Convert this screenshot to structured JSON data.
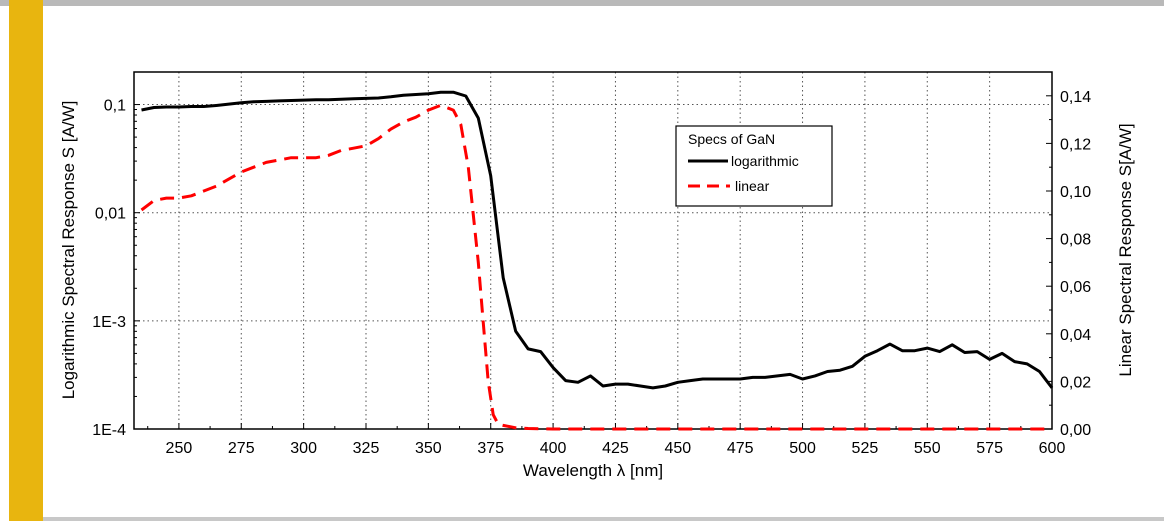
{
  "colors": {
    "accent_bar": "#e8b50f",
    "logarithmic_series": "#000000",
    "linear_series": "#ff0000",
    "grid": "#555555"
  },
  "chart_data": {
    "type": "line",
    "xlabel": "Wavelength λ [nm]",
    "ylabel_left": "Logarithmic Spectral Response S [A/W]",
    "ylabel_right": "Linear Spectral Response S[A/W]",
    "xlim": [
      232,
      600
    ],
    "ylim_left": [
      0.0001,
      0.2
    ],
    "yscale_left": "log",
    "ylim_right": [
      0,
      0.15
    ],
    "x_ticks": [
      "250",
      "275",
      "300",
      "325",
      "350",
      "375",
      "400",
      "425",
      "450",
      "475",
      "500",
      "525",
      "550",
      "575",
      "600"
    ],
    "y_ticks_left": [
      "1E-4",
      "1E-3",
      "0,01",
      "0,1"
    ],
    "y_ticks_right": [
      "0,00",
      "0,02",
      "0,04",
      "0,06",
      "0,08",
      "0,10",
      "0,12",
      "0,14"
    ],
    "grid": true,
    "legend": {
      "title": "Specs of GaN",
      "position": "top-right",
      "entries": [
        "logarithmic",
        "linear"
      ]
    },
    "series": [
      {
        "name": "logarithmic",
        "axis": "left",
        "style": "solid",
        "x": [
          235,
          240,
          245,
          250,
          255,
          260,
          265,
          270,
          275,
          280,
          285,
          290,
          295,
          300,
          305,
          310,
          315,
          320,
          325,
          330,
          335,
          340,
          345,
          350,
          355,
          360,
          365,
          370,
          375,
          380,
          385,
          390,
          395,
          400,
          405,
          410,
          415,
          420,
          425,
          430,
          435,
          440,
          445,
          450,
          455,
          460,
          465,
          470,
          475,
          480,
          485,
          490,
          495,
          500,
          505,
          510,
          515,
          520,
          525,
          530,
          535,
          540,
          545,
          550,
          555,
          560,
          565,
          570,
          575,
          580,
          585,
          590,
          595,
          600
        ],
        "y": [
          0.089,
          0.094,
          0.095,
          0.095,
          0.096,
          0.096,
          0.098,
          0.101,
          0.104,
          0.106,
          0.107,
          0.108,
          0.109,
          0.11,
          0.111,
          0.111,
          0.112,
          0.113,
          0.114,
          0.115,
          0.118,
          0.122,
          0.124,
          0.126,
          0.13,
          0.13,
          0.12,
          0.075,
          0.022,
          0.0025,
          0.0008,
          0.00055,
          0.00052,
          0.00037,
          0.00028,
          0.00027,
          0.00031,
          0.00025,
          0.00026,
          0.00026,
          0.00025,
          0.00024,
          0.00025,
          0.00027,
          0.00028,
          0.00029,
          0.00029,
          0.00029,
          0.00029,
          0.0003,
          0.0003,
          0.00031,
          0.00032,
          0.00029,
          0.00031,
          0.00034,
          0.00035,
          0.00038,
          0.00047,
          0.00053,
          0.00061,
          0.00053,
          0.00053,
          0.00056,
          0.00052,
          0.0006,
          0.00051,
          0.00052,
          0.00044,
          0.0005,
          0.00042,
          0.0004,
          0.00034,
          0.00024
        ]
      },
      {
        "name": "linear",
        "axis": "right",
        "style": "dashed",
        "x": [
          235,
          240,
          245,
          250,
          255,
          260,
          265,
          270,
          275,
          280,
          285,
          290,
          295,
          300,
          305,
          310,
          315,
          320,
          325,
          330,
          335,
          340,
          345,
          350,
          355,
          360,
          363,
          366,
          368,
          370,
          372,
          374,
          376,
          378,
          380,
          385,
          390,
          400,
          450,
          500,
          550,
          600
        ],
        "y": [
          0.092,
          0.096,
          0.097,
          0.097,
          0.098,
          0.1,
          0.102,
          0.105,
          0.108,
          0.11,
          0.112,
          0.113,
          0.114,
          0.114,
          0.114,
          0.115,
          0.117,
          0.118,
          0.119,
          0.122,
          0.126,
          0.129,
          0.131,
          0.134,
          0.136,
          0.134,
          0.128,
          0.11,
          0.09,
          0.07,
          0.045,
          0.02,
          0.006,
          0.002,
          0.0015,
          0.0005,
          0.0002,
          0.0,
          0.0,
          0.0,
          0.0,
          0.0
        ]
      }
    ]
  }
}
